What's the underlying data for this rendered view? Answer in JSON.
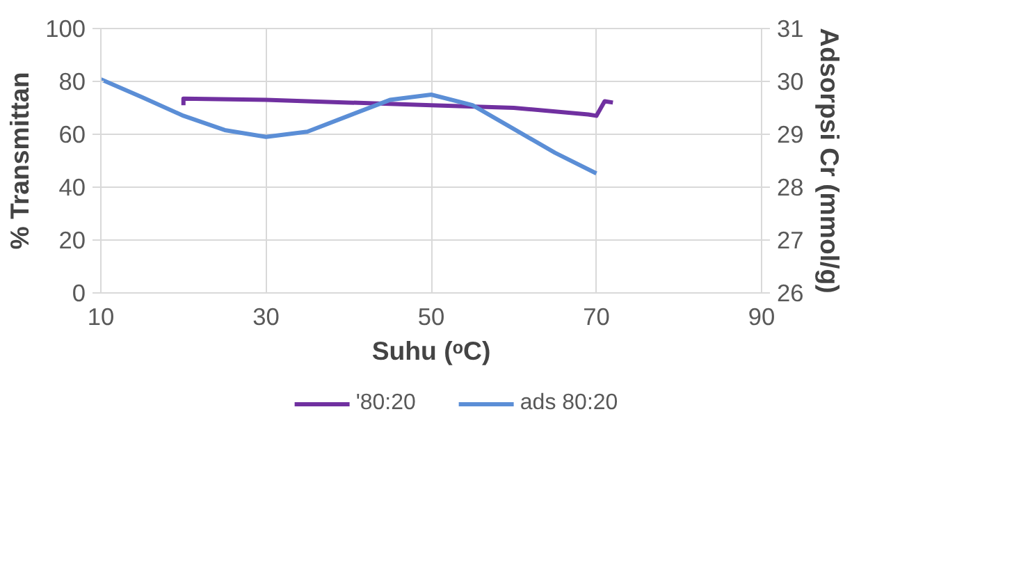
{
  "chart_data": {
    "type": "line",
    "xlabel": "Suhu (ᵒC)",
    "ylabel": "% Transmittan",
    "y2label": "Adsorpsi Cr (mmol/g)",
    "xlim": [
      10,
      90
    ],
    "xticks": [
      10,
      30,
      50,
      70,
      90
    ],
    "ylim": [
      0,
      100
    ],
    "yticks": [
      0,
      20,
      40,
      60,
      80,
      100
    ],
    "y2lim": [
      26,
      31
    ],
    "y2ticks": [
      26,
      27,
      28,
      29,
      30,
      31
    ],
    "grid": true,
    "legend": "bottom",
    "series": [
      {
        "name": "'80:20",
        "color": "#7030a0",
        "x": [
          20,
          20,
          30,
          40,
          50,
          60,
          69,
          70,
          71,
          72
        ],
        "values": [
          71,
          73.5,
          73,
          72,
          71,
          70,
          67.5,
          67,
          72.5,
          72
        ]
      },
      {
        "name": "ads 80:20",
        "color": "#5b8ed6",
        "axis": "y2",
        "x": [
          10,
          15,
          20,
          25,
          30,
          35,
          40,
          45,
          50,
          55,
          60,
          65,
          70
        ],
        "values": [
          30.04,
          29.7,
          29.35,
          29.08,
          28.95,
          29.05,
          29.35,
          29.65,
          29.75,
          29.55,
          29.1,
          28.65,
          28.26
        ]
      }
    ]
  }
}
